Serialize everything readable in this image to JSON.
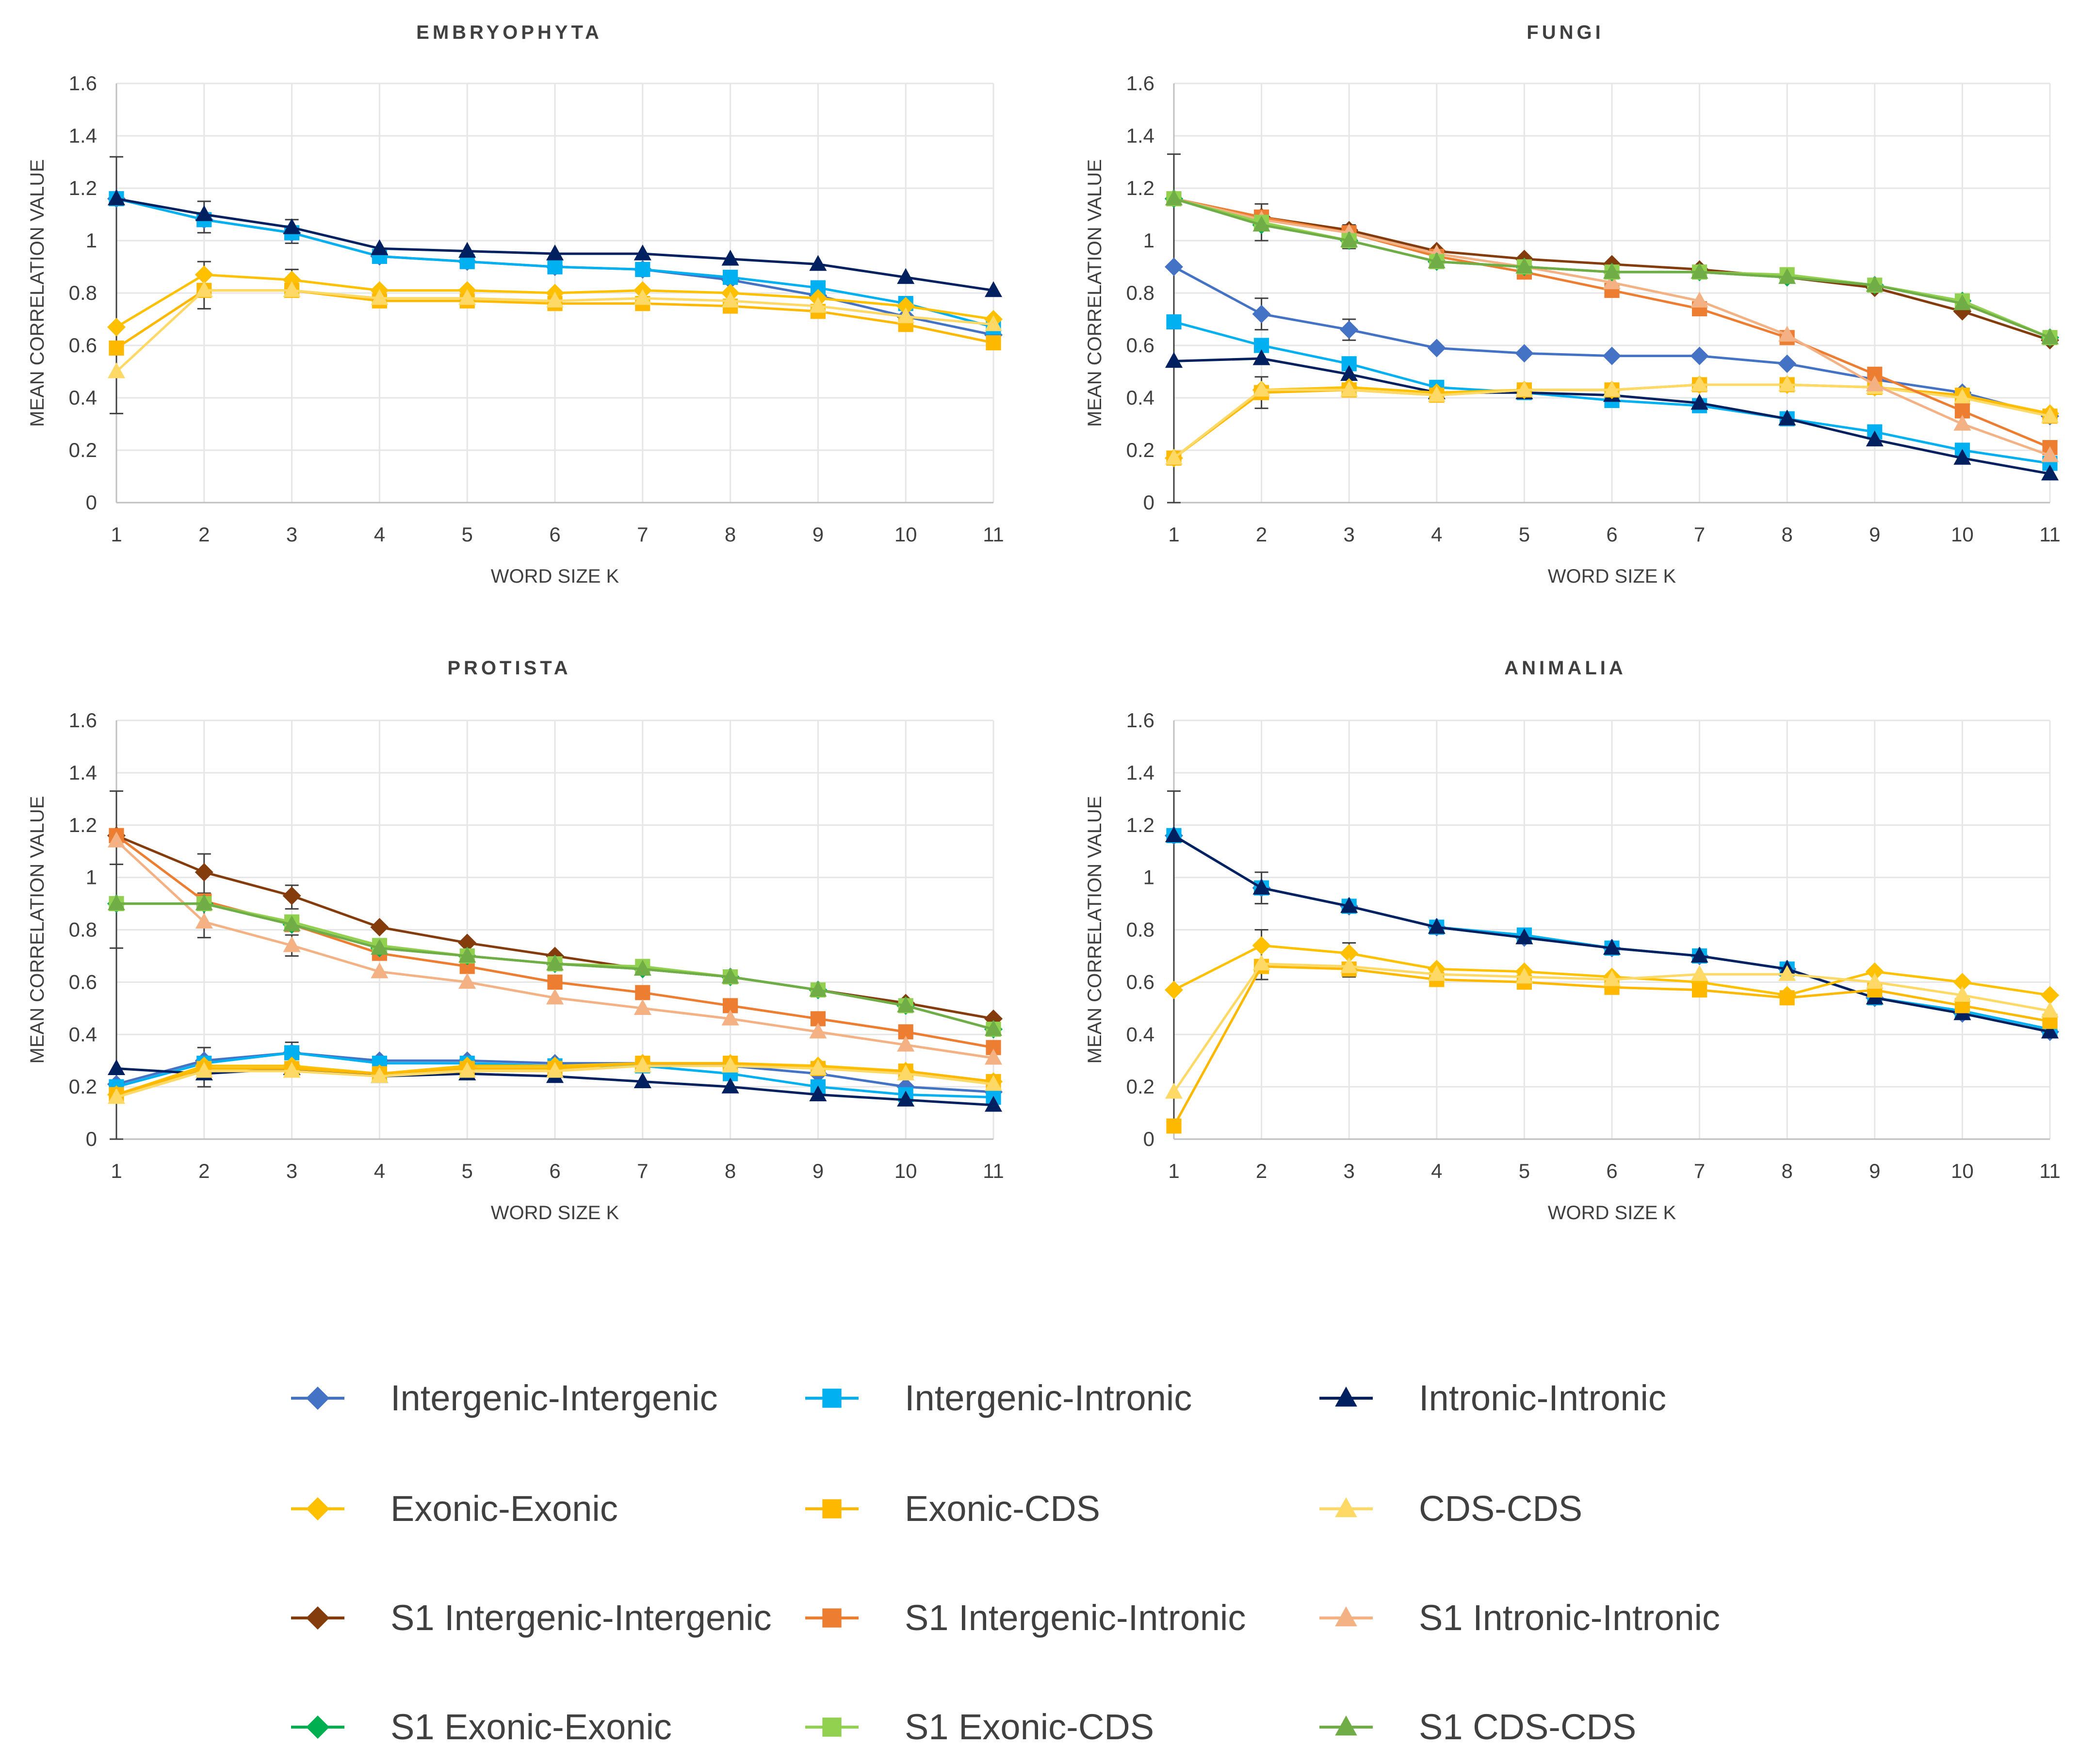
{
  "series_styles": [
    {
      "name": "Intergenic-Intergenic",
      "color": "#4472C4",
      "marker": "diamond"
    },
    {
      "name": "Intergenic-Intronic",
      "color": "#00B0F0",
      "marker": "square"
    },
    {
      "name": "Intronic-Intronic",
      "color": "#002060",
      "marker": "triangle"
    },
    {
      "name": "Exonic-Exonic",
      "color": "#FFC000",
      "marker": "diamond"
    },
    {
      "name": "Exonic-CDS",
      "color": "#FFB800",
      "marker": "square"
    },
    {
      "name": "CDS-CDS",
      "color": "#FFD966",
      "marker": "triangle"
    },
    {
      "name": "S1 Intergenic-Intergenic",
      "color": "#843C0C",
      "marker": "diamond"
    },
    {
      "name": "S1 Intergenic-Intronic",
      "color": "#ED7D31",
      "marker": "square"
    },
    {
      "name": "S1 Intronic-Intronic",
      "color": "#F4B183",
      "marker": "triangle"
    },
    {
      "name": "S1 Exonic-Exonic",
      "color": "#00B050",
      "marker": "diamond"
    },
    {
      "name": "S1 Exonic-CDS",
      "color": "#92D050",
      "marker": "square"
    },
    {
      "name": "S1 CDS-CDS",
      "color": "#70AD47",
      "marker": "triangle"
    }
  ],
  "chart_data": [
    {
      "type": "line",
      "title": "EMBRYOPHYTA",
      "xlabel": "WORD SIZE K",
      "ylabel": "MEAN CORRELATION VALUE",
      "x": [
        1,
        2,
        3,
        4,
        5,
        6,
        7,
        8,
        9,
        10,
        11
      ],
      "ylim": [
        0,
        1.6
      ],
      "yticks": [
        "0",
        "0.2",
        "0.4",
        "0.6",
        "0.8",
        "1",
        "1.2",
        "1.4",
        "1.6"
      ],
      "grid": true,
      "series": [
        {
          "name": "Intergenic-Intergenic",
          "values": [
            1.16,
            1.08,
            1.03,
            0.94,
            0.92,
            0.9,
            0.89,
            0.85,
            0.79,
            0.71,
            0.64
          ]
        },
        {
          "name": "Intergenic-Intronic",
          "values": [
            1.16,
            1.08,
            1.03,
            0.94,
            0.92,
            0.9,
            0.89,
            0.86,
            0.82,
            0.76,
            0.67
          ]
        },
        {
          "name": "Intronic-Intronic",
          "values": [
            1.16,
            1.1,
            1.05,
            0.97,
            0.96,
            0.95,
            0.95,
            0.93,
            0.91,
            0.86,
            0.81
          ]
        },
        {
          "name": "Exonic-Exonic",
          "values": [
            0.67,
            0.87,
            0.85,
            0.81,
            0.81,
            0.8,
            0.81,
            0.8,
            0.78,
            0.75,
            0.7
          ]
        },
        {
          "name": "Exonic-CDS",
          "values": [
            0.59,
            0.81,
            0.81,
            0.77,
            0.77,
            0.76,
            0.76,
            0.75,
            0.73,
            0.68,
            0.61
          ]
        },
        {
          "name": "CDS-CDS",
          "values": [
            0.5,
            0.81,
            0.81,
            0.78,
            0.78,
            0.77,
            0.78,
            0.77,
            0.75,
            0.71,
            0.68
          ]
        }
      ],
      "error_bars": [
        {
          "x": 1,
          "low": 0.34,
          "high": 1.32
        },
        {
          "x": 2,
          "low": 0.74,
          "high": 0.92
        },
        {
          "x": 2,
          "low": 1.03,
          "high": 1.15
        },
        {
          "x": 3,
          "low": 0.99,
          "high": 1.08
        },
        {
          "x": 3,
          "low": 0.8,
          "high": 0.89
        }
      ]
    },
    {
      "type": "line",
      "title": "FUNGI",
      "xlabel": "WORD SIZE K",
      "ylabel": "MEAN CORRELATION VALUE",
      "x": [
        1,
        2,
        3,
        4,
        5,
        6,
        7,
        8,
        9,
        10,
        11
      ],
      "ylim": [
        0,
        1.6
      ],
      "yticks": [
        "0",
        "0.2",
        "0.4",
        "0.6",
        "0.8",
        "1",
        "1.2",
        "1.4",
        "1.6"
      ],
      "grid": true,
      "series": [
        {
          "name": "Intergenic-Intergenic",
          "values": [
            0.9,
            0.72,
            0.66,
            0.59,
            0.57,
            0.56,
            0.56,
            0.53,
            0.47,
            0.42,
            0.33
          ]
        },
        {
          "name": "Intergenic-Intronic",
          "values": [
            0.69,
            0.6,
            0.53,
            0.44,
            0.42,
            0.39,
            0.37,
            0.32,
            0.27,
            0.2,
            0.15
          ]
        },
        {
          "name": "Intronic-Intronic",
          "values": [
            0.54,
            0.55,
            0.49,
            0.42,
            0.42,
            0.41,
            0.38,
            0.32,
            0.24,
            0.17,
            0.11
          ]
        },
        {
          "name": "Exonic-Exonic",
          "values": [
            0.17,
            0.43,
            0.44,
            0.42,
            0.43,
            0.43,
            0.45,
            0.45,
            0.44,
            0.41,
            0.34
          ]
        },
        {
          "name": "Exonic-CDS",
          "values": [
            0.17,
            0.42,
            0.43,
            0.41,
            0.43,
            0.43,
            0.45,
            0.45,
            0.44,
            0.41,
            0.33
          ]
        },
        {
          "name": "CDS-CDS",
          "values": [
            0.17,
            0.43,
            0.43,
            0.41,
            0.43,
            0.43,
            0.45,
            0.45,
            0.44,
            0.4,
            0.33
          ]
        },
        {
          "name": "S1 Intergenic-Intergenic",
          "values": [
            1.16,
            1.09,
            1.04,
            0.96,
            0.93,
            0.91,
            0.89,
            0.86,
            0.82,
            0.73,
            0.62
          ]
        },
        {
          "name": "S1 Intergenic-Intronic",
          "values": [
            1.16,
            1.09,
            1.03,
            0.94,
            0.88,
            0.81,
            0.74,
            0.63,
            0.49,
            0.35,
            0.21
          ]
        },
        {
          "name": "S1 Intronic-Intronic",
          "values": [
            1.16,
            1.08,
            1.03,
            0.95,
            0.9,
            0.84,
            0.77,
            0.64,
            0.45,
            0.3,
            0.18
          ]
        },
        {
          "name": "S1 Exonic-Exonic",
          "values": [
            1.16,
            1.06,
            1.0,
            0.92,
            0.9,
            0.88,
            0.88,
            0.86,
            0.83,
            0.77,
            0.63
          ]
        },
        {
          "name": "S1 Exonic-CDS",
          "values": [
            1.16,
            1.07,
            1.0,
            0.92,
            0.9,
            0.88,
            0.88,
            0.87,
            0.83,
            0.77,
            0.63
          ]
        },
        {
          "name": "S1 CDS-CDS",
          "values": [
            1.16,
            1.06,
            1.0,
            0.92,
            0.9,
            0.88,
            0.88,
            0.86,
            0.83,
            0.76,
            0.63
          ]
        }
      ],
      "error_bars": [
        {
          "x": 1,
          "low": 0.0,
          "high": 1.33
        },
        {
          "x": 2,
          "low": 1.0,
          "high": 1.14
        },
        {
          "x": 2,
          "low": 0.36,
          "high": 0.48
        },
        {
          "x": 2,
          "low": 0.66,
          "high": 0.78
        },
        {
          "x": 3,
          "low": 0.62,
          "high": 0.7
        },
        {
          "x": 3,
          "low": 0.97,
          "high": 1.06
        }
      ]
    },
    {
      "type": "line",
      "title": "PROTISTA",
      "xlabel": "WORD SIZE K",
      "ylabel": "MEAN CORRELATION VALUE",
      "x": [
        1,
        2,
        3,
        4,
        5,
        6,
        7,
        8,
        9,
        10,
        11
      ],
      "ylim": [
        0,
        1.6
      ],
      "yticks": [
        "0",
        "0.2",
        "0.4",
        "0.6",
        "0.8",
        "1",
        "1.2",
        "1.4",
        "1.6"
      ],
      "grid": true,
      "series": [
        {
          "name": "Intergenic-Intergenic",
          "values": [
            0.21,
            0.3,
            0.33,
            0.3,
            0.3,
            0.29,
            0.29,
            0.28,
            0.25,
            0.2,
            0.18
          ]
        },
        {
          "name": "Intergenic-Intronic",
          "values": [
            0.2,
            0.29,
            0.33,
            0.29,
            0.29,
            0.28,
            0.28,
            0.25,
            0.2,
            0.17,
            0.16
          ]
        },
        {
          "name": "Intronic-Intronic",
          "values": [
            0.27,
            0.25,
            0.27,
            0.24,
            0.25,
            0.24,
            0.22,
            0.2,
            0.17,
            0.15,
            0.13
          ]
        },
        {
          "name": "Exonic-Exonic",
          "values": [
            0.17,
            0.28,
            0.28,
            0.25,
            0.28,
            0.28,
            0.29,
            0.29,
            0.28,
            0.26,
            0.22
          ]
        },
        {
          "name": "Exonic-CDS",
          "values": [
            0.17,
            0.27,
            0.27,
            0.25,
            0.27,
            0.27,
            0.29,
            0.29,
            0.27,
            0.26,
            0.22
          ]
        },
        {
          "name": "CDS-CDS",
          "values": [
            0.16,
            0.26,
            0.26,
            0.24,
            0.26,
            0.26,
            0.28,
            0.28,
            0.27,
            0.25,
            0.21
          ]
        },
        {
          "name": "S1 Intergenic-Intergenic",
          "values": [
            1.16,
            1.02,
            0.93,
            0.81,
            0.75,
            0.7,
            0.65,
            0.62,
            0.57,
            0.52,
            0.46
          ]
        },
        {
          "name": "S1 Intergenic-Intronic",
          "values": [
            1.16,
            0.91,
            0.82,
            0.71,
            0.66,
            0.6,
            0.56,
            0.51,
            0.46,
            0.41,
            0.35
          ]
        },
        {
          "name": "S1 Intronic-Intronic",
          "values": [
            1.14,
            0.83,
            0.74,
            0.64,
            0.6,
            0.54,
            0.5,
            0.46,
            0.41,
            0.36,
            0.31
          ]
        },
        {
          "name": "S1 Exonic-Exonic",
          "values": [
            0.9,
            0.9,
            0.82,
            0.73,
            0.7,
            0.67,
            0.65,
            0.62,
            0.57,
            0.51,
            0.42
          ]
        },
        {
          "name": "S1 Exonic-CDS",
          "values": [
            0.9,
            0.9,
            0.83,
            0.74,
            0.7,
            0.67,
            0.66,
            0.62,
            0.57,
            0.51,
            0.42
          ]
        },
        {
          "name": "S1 CDS-CDS",
          "values": [
            0.9,
            0.9,
            0.82,
            0.73,
            0.7,
            0.67,
            0.65,
            0.62,
            0.57,
            0.51,
            0.42
          ]
        }
      ],
      "error_bars": [
        {
          "x": 1,
          "low": 0.0,
          "high": 1.33
        },
        {
          "x": 1,
          "low": 0.73,
          "high": 1.05
        },
        {
          "x": 2,
          "low": 0.94,
          "high": 1.09
        },
        {
          "x": 2,
          "low": 0.77,
          "high": 0.88
        },
        {
          "x": 2,
          "low": 0.2,
          "high": 0.35
        },
        {
          "x": 3,
          "low": 0.88,
          "high": 0.97
        },
        {
          "x": 3,
          "low": 0.7,
          "high": 0.78
        },
        {
          "x": 3,
          "low": 0.29,
          "high": 0.37
        }
      ]
    },
    {
      "type": "line",
      "title": "ANIMALIA",
      "xlabel": "WORD SIZE K",
      "ylabel": "MEAN CORRELATION VALUE",
      "x": [
        1,
        2,
        3,
        4,
        5,
        6,
        7,
        8,
        9,
        10,
        11
      ],
      "ylim": [
        0,
        1.6
      ],
      "yticks": [
        "0",
        "0.2",
        "0.4",
        "0.6",
        "0.8",
        "1",
        "1.2",
        "1.4",
        "1.6"
      ],
      "grid": true,
      "series": [
        {
          "name": "Intergenic-Intergenic",
          "values": [
            1.16,
            0.96,
            0.89,
            0.81,
            0.77,
            0.73,
            0.7,
            0.65,
            0.54,
            0.48,
            0.41
          ]
        },
        {
          "name": "Intergenic-Intronic",
          "values": [
            1.16,
            0.96,
            0.89,
            0.81,
            0.78,
            0.73,
            0.7,
            0.65,
            0.54,
            0.49,
            0.42
          ]
        },
        {
          "name": "Intronic-Intronic",
          "values": [
            1.16,
            0.96,
            0.89,
            0.81,
            0.77,
            0.73,
            0.7,
            0.65,
            0.54,
            0.48,
            0.41
          ]
        },
        {
          "name": "Exonic-Exonic",
          "values": [
            0.57,
            0.74,
            0.71,
            0.65,
            0.64,
            0.62,
            0.6,
            0.55,
            0.64,
            0.6,
            0.55
          ]
        },
        {
          "name": "Exonic-CDS",
          "values": [
            0.05,
            0.66,
            0.65,
            0.61,
            0.6,
            0.58,
            0.57,
            0.54,
            0.57,
            0.51,
            0.45
          ]
        },
        {
          "name": "CDS-CDS",
          "values": [
            0.18,
            0.67,
            0.66,
            0.63,
            0.62,
            0.61,
            0.63,
            0.63,
            0.6,
            0.55,
            0.49
          ]
        }
      ],
      "error_bars": [
        {
          "x": 1,
          "low": 0.03,
          "high": 1.33
        },
        {
          "x": 2,
          "low": 0.61,
          "high": 0.8
        },
        {
          "x": 2,
          "low": 0.9,
          "high": 1.02
        },
        {
          "x": 3,
          "low": 0.62,
          "high": 0.75
        }
      ]
    }
  ]
}
